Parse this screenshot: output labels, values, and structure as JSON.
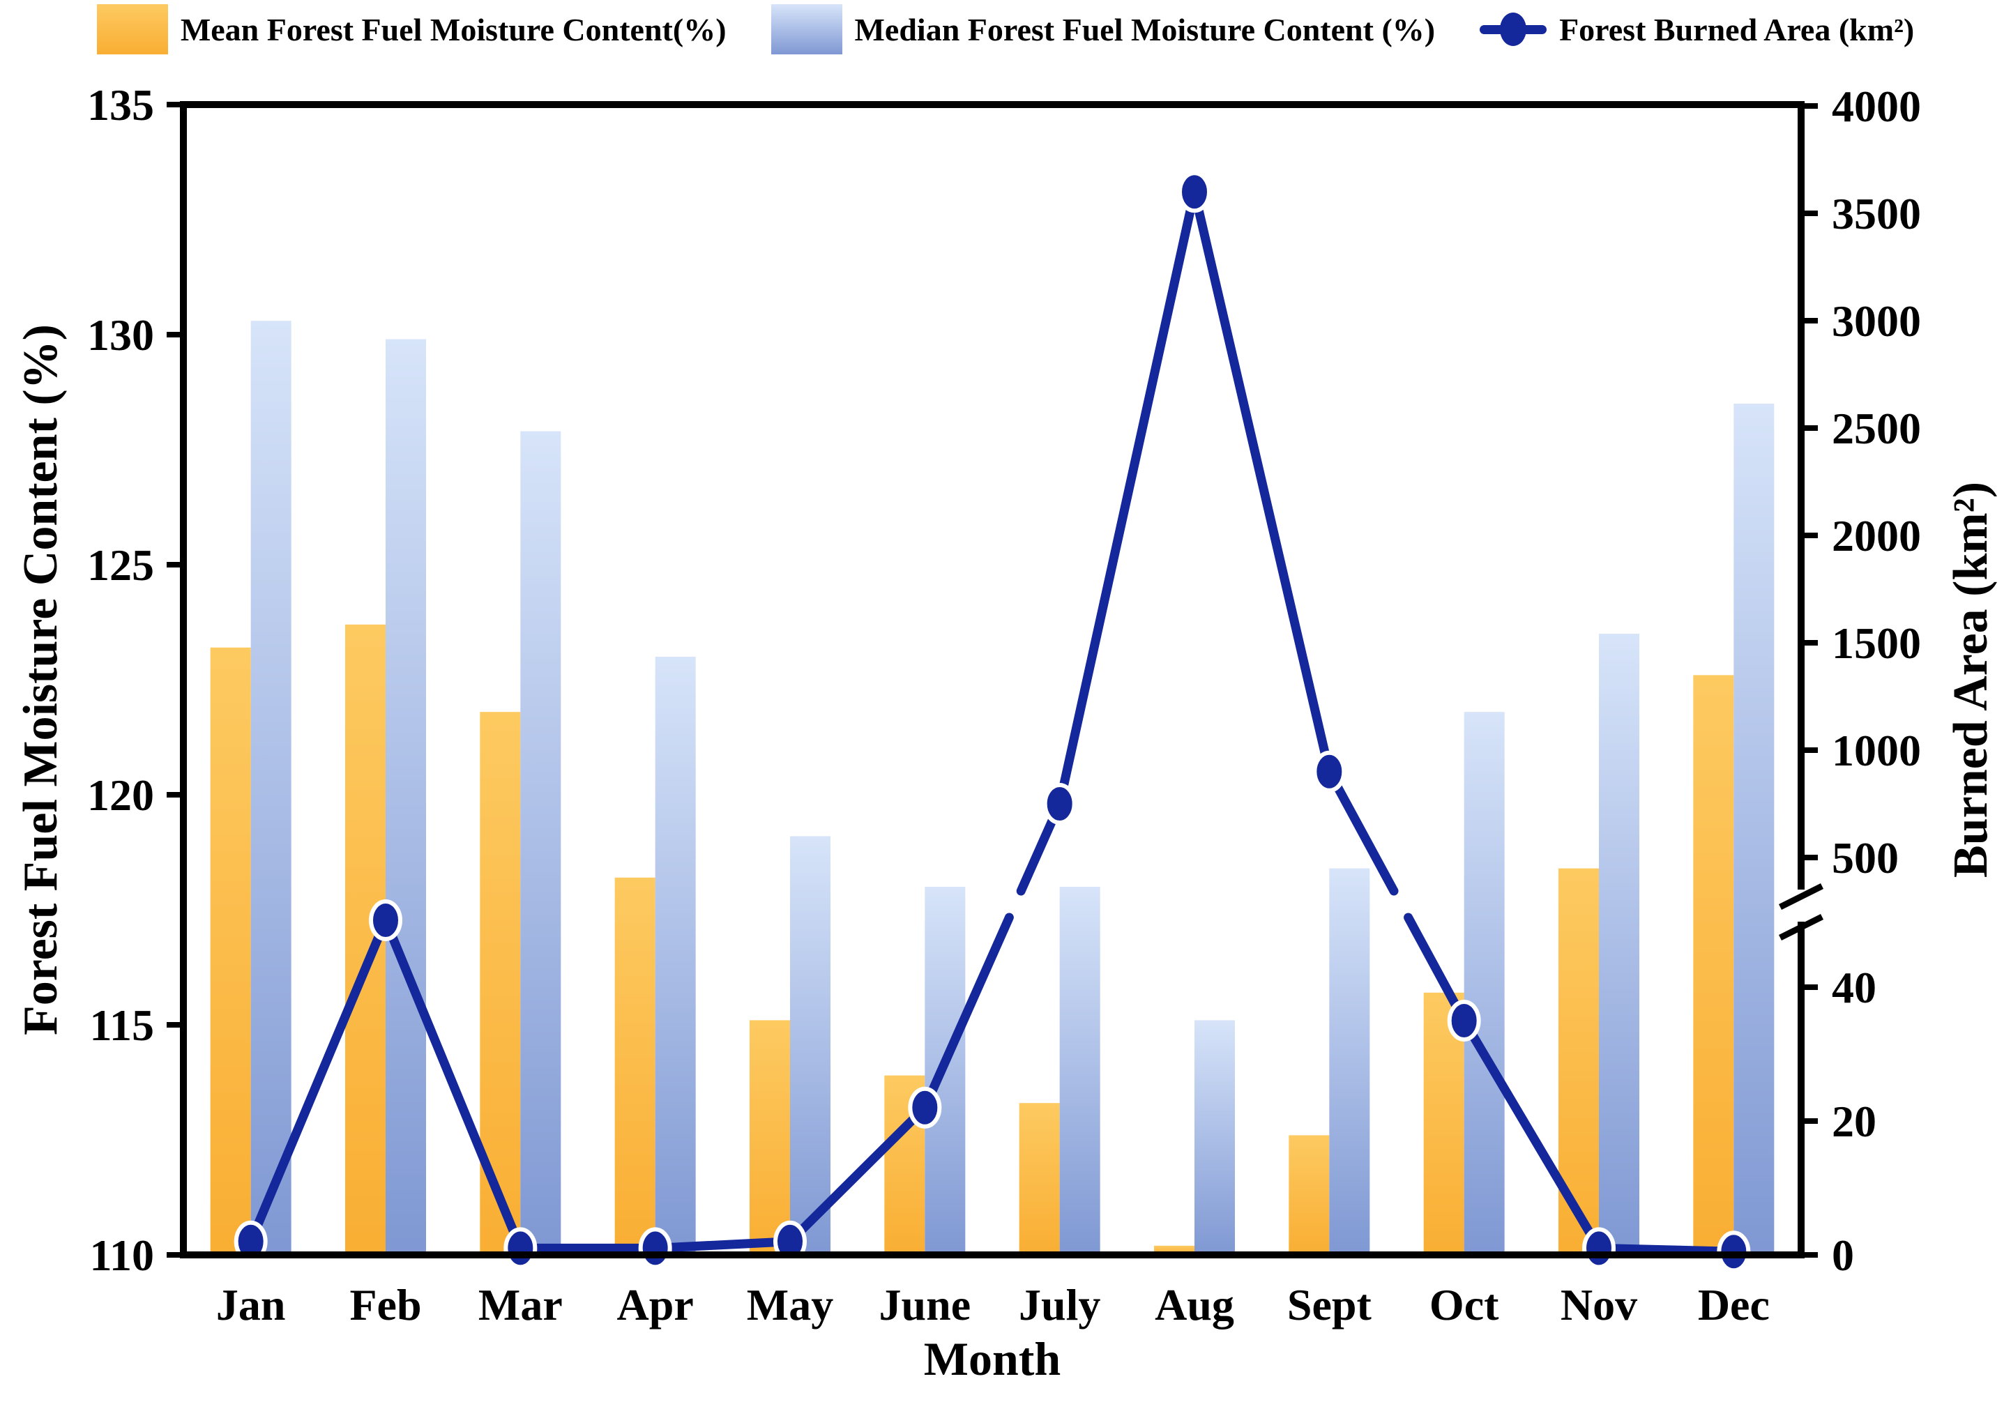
{
  "legend": {
    "mean_label": "Mean Forest Fuel Moisture Content(%)",
    "median_label": "Median Forest Fuel Moisture Content (%)",
    "burned_label": "Forest Burned Area (km²)"
  },
  "axes": {
    "left_title": "Forest Fuel Moisture Content (%)",
    "right_title": "Burned Area (km²)",
    "x_title": "Month"
  },
  "colors": {
    "mean_top": "#FDCA61",
    "mean_bottom": "#F9AE33",
    "median_top": "#D7E4F9",
    "median_bottom": "#7F98D3",
    "line": "#14289B",
    "axis": "#000000",
    "background": "#FFFFFF"
  },
  "chart_data": {
    "type": "combo-bar-line",
    "title": "",
    "xlabel": "Month",
    "categories": [
      "Jan",
      "Feb",
      "Mar",
      "Apr",
      "May",
      "June",
      "July",
      "Aug",
      "Sept",
      "Oct",
      "Nov",
      "Dec"
    ],
    "series": [
      {
        "name": "Mean Forest Fuel Moisture Content(%)",
        "type": "bar",
        "axis": "left",
        "values": [
          123.2,
          123.7,
          121.8,
          118.2,
          115.1,
          113.9,
          113.3,
          110.2,
          112.6,
          115.7,
          118.4,
          122.6
        ]
      },
      {
        "name": "Median Forest Fuel Moisture Content (%)",
        "type": "bar",
        "axis": "left",
        "values": [
          130.3,
          129.9,
          127.9,
          123.0,
          119.1,
          118.0,
          118.0,
          115.1,
          118.4,
          121.8,
          123.5,
          128.5
        ]
      },
      {
        "name": "Forest Burned Area (km²)",
        "type": "line",
        "axis": "right",
        "values": [
          2,
          50,
          1,
          1,
          2,
          22,
          750,
          3600,
          900,
          35,
          1,
          0.5
        ]
      }
    ],
    "left_axis": {
      "label": "Forest Fuel Moisture Content (%)",
      "min": 110,
      "max": 135,
      "ticks": [
        110,
        115,
        120,
        125,
        130,
        135
      ]
    },
    "right_axis": {
      "label": "Burned Area (km²)",
      "broken": true,
      "bottom_ticks": [
        0,
        20,
        40
      ],
      "top_ticks": [
        500,
        1000,
        1500,
        2000,
        2500,
        3000,
        3500,
        4000
      ],
      "bottom_range": [
        0,
        52
      ],
      "top_range": [
        260,
        4000
      ]
    },
    "grid": false,
    "legend_position": "top"
  }
}
